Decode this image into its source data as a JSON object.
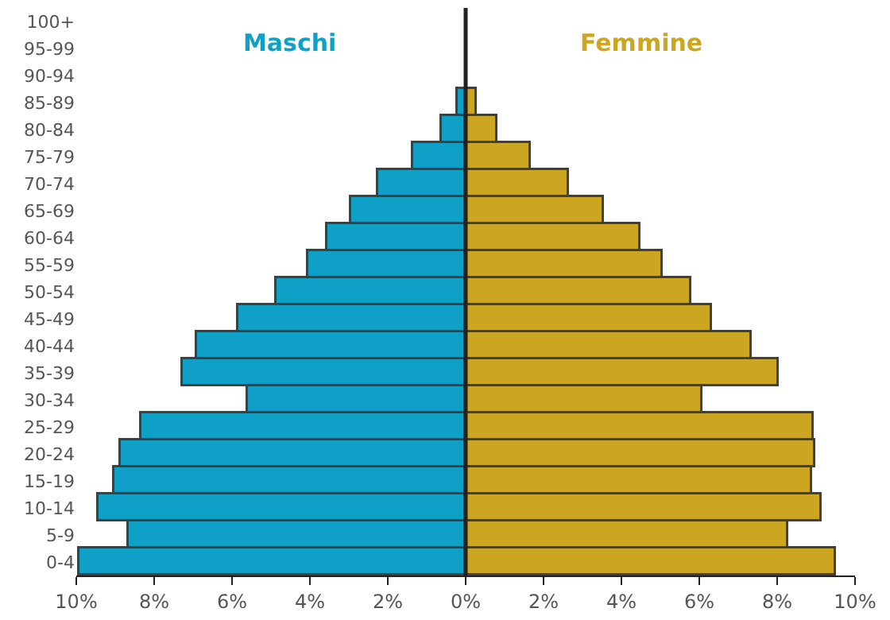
{
  "chart_data": {
    "type": "bar",
    "orientation": "horizontal",
    "categories": [
      "100+",
      "95-99",
      "90-94",
      "85-89",
      "80-84",
      "75-79",
      "70-74",
      "65-69",
      "60-64",
      "55-59",
      "50-54",
      "45-49",
      "40-44",
      "35-39",
      "30-34",
      "25-29",
      "20-24",
      "15-19",
      "10-14",
      "5-9",
      "0-4"
    ],
    "series": [
      {
        "name": "Maschi",
        "color": "#0fa0c8",
        "values": [
          null,
          null,
          null,
          -0.2,
          -0.62,
          -1.35,
          -2.25,
          -2.94,
          -3.57,
          -4.06,
          -4.84,
          -5.85,
          -6.88,
          -7.28,
          -5.59,
          -8.32,
          -8.86,
          -9.03,
          -9.41,
          -8.66,
          -9.9
        ]
      },
      {
        "name": "Femmine",
        "color": "#cca621",
        "values": [
          null,
          null,
          null,
          0.28,
          0.83,
          1.66,
          2.64,
          3.57,
          4.47,
          5.05,
          5.8,
          6.33,
          7.33,
          8.04,
          6.09,
          8.95,
          8.96,
          8.89,
          9.16,
          8.3,
          9.49
        ]
      }
    ],
    "xlim": [
      -10,
      10
    ],
    "xticks": [
      {
        "value": -10,
        "label": "10%"
      },
      {
        "value": -8,
        "label": "8%"
      },
      {
        "value": -6,
        "label": "6%"
      },
      {
        "value": -4,
        "label": "4%"
      },
      {
        "value": -2,
        "label": "2%"
      },
      {
        "value": 0,
        "label": "0%"
      },
      {
        "value": 2,
        "label": "2%"
      },
      {
        "value": 4,
        "label": "4%"
      },
      {
        "value": 6,
        "label": "6%"
      },
      {
        "value": 8,
        "label": "8%"
      },
      {
        "value": 10,
        "label": "10%"
      }
    ],
    "stacked": true,
    "ref_lines": [
      {
        "axis": "x",
        "value": 0,
        "color": "#222222"
      }
    ],
    "legend": false
  }
}
